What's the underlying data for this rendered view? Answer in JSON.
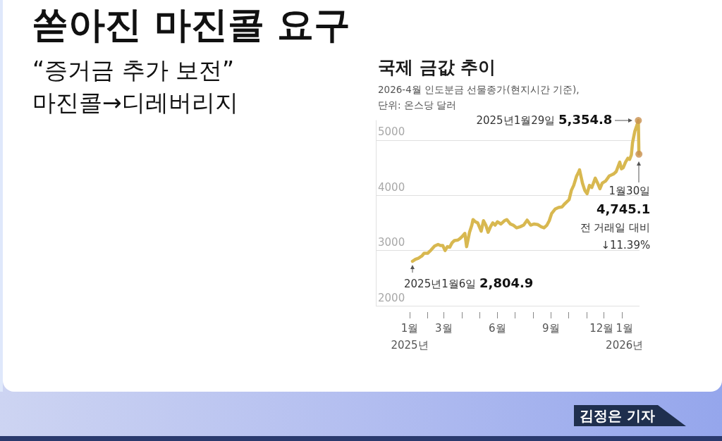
{
  "chart_data": {
    "type": "line",
    "title": "국제 금값 추이",
    "subtitle": "2026-4월 인도분금 선물종가(현지시간 기준),\n단위: 온스당 달러",
    "x": [
      "2025-01-06",
      "2025-01-11",
      "2025-01-16",
      "2025-01-22",
      "2025-01-26",
      "2025-02-01",
      "2025-02-07",
      "2025-02-13",
      "2025-02-19",
      "2025-02-23",
      "2025-02-27",
      "2025-03-03",
      "2025-03-07",
      "2025-03-11",
      "2025-03-15",
      "2025-03-19",
      "2025-03-25",
      "2025-03-29",
      "2025-04-02",
      "2025-04-06",
      "2025-04-09",
      "2025-04-14",
      "2025-04-18",
      "2025-04-20",
      "2025-04-24",
      "2025-04-28",
      "2025-05-04",
      "2025-05-08",
      "2025-05-12",
      "2025-05-16",
      "2025-05-20",
      "2025-05-24",
      "2025-05-28",
      "2025-06-01",
      "2025-06-07",
      "2025-06-13",
      "2025-06-17",
      "2025-06-23",
      "2025-06-28",
      "2025-07-04",
      "2025-07-10",
      "2025-07-16",
      "2025-07-22",
      "2025-07-28",
      "2025-08-03",
      "2025-08-09",
      "2025-08-15",
      "2025-08-20",
      "2025-08-25",
      "2025-08-29",
      "2025-09-02",
      "2025-09-08",
      "2025-09-14",
      "2025-09-20",
      "2025-09-24",
      "2025-09-28",
      "2025-10-02",
      "2025-10-06",
      "2025-10-10",
      "2025-10-15",
      "2025-10-18",
      "2025-10-20",
      "2025-10-25",
      "2025-10-29",
      "2025-11-02",
      "2025-11-06",
      "2025-11-10",
      "2025-11-16",
      "2025-11-20",
      "2025-11-24",
      "2025-11-28",
      "2025-12-04",
      "2025-12-10",
      "2025-12-14",
      "2025-12-18",
      "2025-12-22",
      "2025-12-28",
      "2025-12-31",
      "2026-01-03",
      "2026-01-07",
      "2026-01-11",
      "2026-01-14",
      "2026-01-17",
      "2026-01-19",
      "2026-01-23",
      "2026-01-27",
      "2026-01-29",
      "2026-01-30"
    ],
    "series": [
      {
        "color": "#d8b850",
        "values": [
          2804.9,
          2840,
          2860,
          2900,
          2950,
          2950,
          3010,
          3080,
          3110,
          3090,
          3090,
          3000,
          3070,
          3060,
          3140,
          3180,
          3190,
          3220,
          3260,
          3310,
          3070,
          3330,
          3460,
          3560,
          3520,
          3500,
          3350,
          3540,
          3460,
          3330,
          3430,
          3500,
          3460,
          3520,
          3480,
          3540,
          3560,
          3480,
          3460,
          3410,
          3430,
          3460,
          3550,
          3460,
          3480,
          3470,
          3430,
          3410,
          3460,
          3540,
          3670,
          3750,
          3780,
          3790,
          3840,
          3880,
          3920,
          4090,
          4180,
          4350,
          4410,
          4460,
          4220,
          4090,
          4030,
          4180,
          4140,
          4310,
          4220,
          4120,
          4220,
          4260,
          4350,
          4370,
          4390,
          4430,
          4600,
          4480,
          4500,
          4600,
          4670,
          4650,
          4730,
          4950,
          5160,
          5280,
          5354.8,
          4745.1
        ]
      },
      {
        "type": "scatter",
        "marker": "circle",
        "color": "#c8904f",
        "x": [
          "2026-01-29",
          "2026-01-30"
        ],
        "values": [
          5354.8,
          4745.1
        ]
      }
    ],
    "xlim": [
      "2024-11-04",
      "2026-01-31"
    ],
    "xticks": [
      {
        "value": "2025-01",
        "label": "1월\n2025년"
      },
      {
        "value": "2025-02",
        "label": null
      },
      {
        "value": "2025-03",
        "label": "3월"
      },
      {
        "value": "2025-04",
        "label": null
      },
      {
        "value": "2025-05",
        "label": null
      },
      {
        "value": "2025-06",
        "label": "6월"
      },
      {
        "value": "2025-07",
        "label": null
      },
      {
        "value": "2025-08",
        "label": null
      },
      {
        "value": "2025-09",
        "label": "9월"
      },
      {
        "value": "2025-10",
        "label": null
      },
      {
        "value": "2025-11",
        "label": null
      },
      {
        "value": "2025-12",
        "label": "12월"
      },
      {
        "value": "2026-01",
        "label": "1월\n2026년"
      }
    ],
    "ylim": [
      2000,
      5354.8
    ],
    "yticks": [
      2000,
      3000,
      4000,
      5000
    ],
    "grid": "y",
    "marker": "none",
    "line_style": "solid",
    "annotations": [
      "쏟아진 마진콜 요구",
      "“증거금 추가 보전”\n마진콜→디레버리지",
      {
        "text": "2025년1월29일 5,354.8",
        "x": "2026-01-29",
        "y": 5354.8
      },
      {
        "text": "1월30일\n4,745.1\n전 거래일 대비\n↓11.39%",
        "x": "2026-01-30",
        "y": 4745.1
      },
      {
        "text": "2025년1월6일 2,804.9",
        "x": "2025-01-06",
        "y": 2804.9
      },
      "김정은 기자"
    ]
  }
}
